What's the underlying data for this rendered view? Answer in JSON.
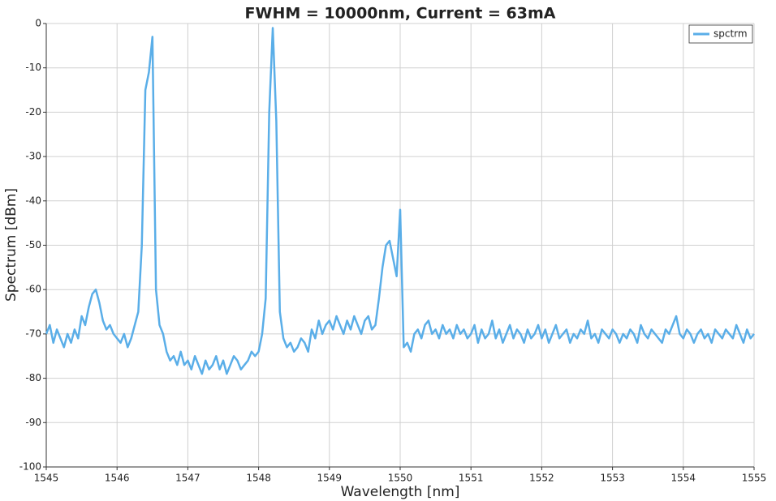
{
  "chart_data": {
    "type": "line",
    "title": "FWHM = 10000nm, Current = 63mA",
    "x_label": "Wavelength [nm]",
    "y_label": "Spectrum [dBm]",
    "x": [
      1545,
      1545.05,
      1545.1,
      1545.15,
      1545.2,
      1545.25,
      1545.3,
      1545.35,
      1545.4,
      1545.45,
      1545.5,
      1545.55,
      1545.6,
      1545.65,
      1545.7,
      1545.75,
      1545.8,
      1545.85,
      1545.9,
      1545.95,
      1546,
      1546.05,
      1546.1,
      1546.15,
      1546.2,
      1546.25,
      1546.3,
      1546.35,
      1546.4,
      1546.45,
      1546.5,
      1546.55,
      1546.6,
      1546.65,
      1546.7,
      1546.75,
      1546.8,
      1546.85,
      1546.9,
      1546.95,
      1547,
      1547.05,
      1547.1,
      1547.15,
      1547.2,
      1547.25,
      1547.3,
      1547.35,
      1547.4,
      1547.45,
      1547.5,
      1547.55,
      1547.6,
      1547.65,
      1547.7,
      1547.75,
      1547.8,
      1547.85,
      1547.9,
      1547.95,
      1548,
      1548.05,
      1548.1,
      1548.15,
      1548.2,
      1548.25,
      1548.3,
      1548.35,
      1548.4,
      1548.45,
      1548.5,
      1548.55,
      1548.6,
      1548.65,
      1548.7,
      1548.75,
      1548.8,
      1548.85,
      1548.9,
      1548.95,
      1549,
      1549.05,
      1549.1,
      1549.15,
      1549.2,
      1549.25,
      1549.3,
      1549.35,
      1549.4,
      1549.45,
      1549.5,
      1549.55,
      1549.6,
      1549.65,
      1549.7,
      1549.75,
      1549.8,
      1549.85,
      1549.9,
      1549.95,
      1550,
      1550.05,
      1550.1,
      1550.15,
      1550.2,
      1550.25,
      1550.3,
      1550.35,
      1550.4,
      1550.45,
      1550.5,
      1550.55,
      1550.6,
      1550.65,
      1550.7,
      1550.75,
      1550.8,
      1550.85,
      1550.9,
      1550.95,
      1551,
      1551.05,
      1551.1,
      1551.15,
      1551.2,
      1551.25,
      1551.3,
      1551.35,
      1551.4,
      1551.45,
      1551.5,
      1551.55,
      1551.6,
      1551.65,
      1551.7,
      1551.75,
      1551.8,
      1551.85,
      1551.9,
      1551.95,
      1552,
      1552.05,
      1552.1,
      1552.15,
      1552.2,
      1552.25,
      1552.3,
      1552.35,
      1552.4,
      1552.45,
      1552.5,
      1552.55,
      1552.6,
      1552.65,
      1552.7,
      1552.75,
      1552.8,
      1552.85,
      1552.9,
      1552.95,
      1553,
      1553.05,
      1553.1,
      1553.15,
      1553.2,
      1553.25,
      1553.3,
      1553.35,
      1553.4,
      1553.45,
      1553.5,
      1553.55,
      1553.6,
      1553.65,
      1553.7,
      1553.75,
      1553.8,
      1553.85,
      1553.9,
      1553.95,
      1554,
      1554.05,
      1554.1,
      1554.15,
      1554.2,
      1554.25,
      1554.3,
      1554.35,
      1554.4,
      1554.45,
      1554.5,
      1554.55,
      1554.6,
      1554.65,
      1554.7,
      1554.75,
      1554.8,
      1554.85,
      1554.9,
      1554.95,
      1555
    ],
    "series": [
      {
        "name": "spctrm",
        "color": "#5aaee8",
        "values": [
          -70,
          -68,
          -72,
          -69,
          -71,
          -73,
          -70,
          -72,
          -69,
          -71,
          -66,
          -68,
          -64,
          -61,
          -60,
          -63,
          -67,
          -69,
          -68,
          -70,
          -71,
          -72,
          -70,
          -73,
          -71,
          -68,
          -65,
          -50,
          -15,
          -11,
          -3,
          -60,
          -68,
          -70,
          -74,
          -76,
          -75,
          -77,
          -74,
          -77,
          -76,
          -78,
          -75,
          -77,
          -79,
          -76,
          -78,
          -77,
          -75,
          -78,
          -76,
          -79,
          -77,
          -75,
          -76,
          -78,
          -77,
          -76,
          -74,
          -75,
          -74,
          -70,
          -62,
          -20,
          -1,
          -22,
          -65,
          -71,
          -73,
          -72,
          -74,
          -73,
          -71,
          -72,
          -74,
          -69,
          -71,
          -67,
          -70,
          -68,
          -67,
          -69,
          -66,
          -68,
          -70,
          -67,
          -69,
          -66,
          -68,
          -70,
          -67,
          -66,
          -69,
          -68,
          -62,
          -55,
          -50,
          -49,
          -53,
          -57,
          -42,
          -73,
          -72,
          -74,
          -70,
          -69,
          -71,
          -68,
          -67,
          -70,
          -69,
          -71,
          -68,
          -70,
          -69,
          -71,
          -68,
          -70,
          -69,
          -71,
          -70,
          -68,
          -72,
          -69,
          -71,
          -70,
          -67,
          -71,
          -69,
          -72,
          -70,
          -68,
          -71,
          -69,
          -70,
          -72,
          -69,
          -71,
          -70,
          -68,
          -71,
          -69,
          -72,
          -70,
          -68,
          -71,
          -70,
          -69,
          -72,
          -70,
          -71,
          -69,
          -70,
          -67,
          -71,
          -70,
          -72,
          -69,
          -70,
          -71,
          -69,
          -70,
          -72,
          -70,
          -71,
          -69,
          -70,
          -72,
          -68,
          -70,
          -71,
          -69,
          -70,
          -71,
          -72,
          -69,
          -70,
          -68,
          -66,
          -70,
          -71,
          -69,
          -70,
          -72,
          -70,
          -69,
          -71,
          -70,
          -72,
          -69,
          -70,
          -71,
          -69,
          -70,
          -71,
          -68,
          -70,
          -72,
          -69,
          -71,
          -70
        ]
      }
    ],
    "xlim": [
      1545,
      1555
    ],
    "ylim": [
      -100,
      0
    ],
    "xticks": [
      1545,
      1546,
      1547,
      1548,
      1549,
      1550,
      1551,
      1552,
      1553,
      1554,
      1555
    ],
    "yticks": [
      -100,
      -90,
      -80,
      -70,
      -60,
      -50,
      -40,
      -30,
      -20,
      -10,
      0
    ],
    "grid": true,
    "legend": "top-right"
  }
}
